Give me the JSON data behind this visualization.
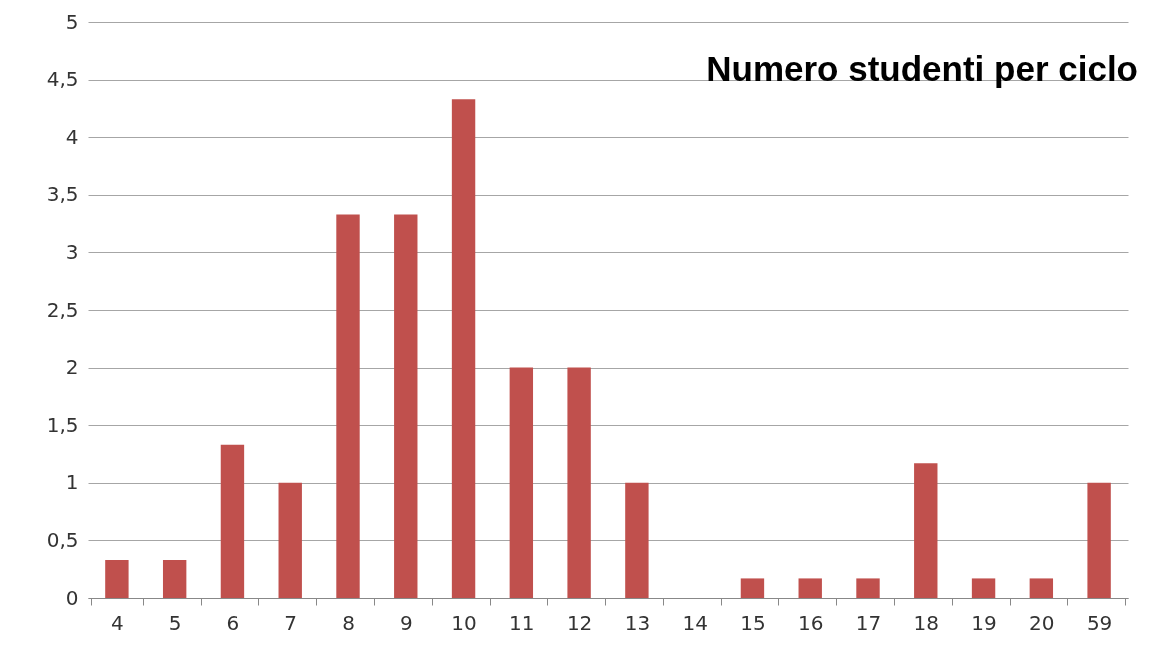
{
  "chart_data": {
    "type": "bar",
    "title": "Numero studenti per ciclo",
    "categories": [
      "4",
      "5",
      "6",
      "7",
      "8",
      "9",
      "10",
      "11",
      "12",
      "13",
      "14",
      "15",
      "16",
      "17",
      "18",
      "19",
      "20",
      "59"
    ],
    "values": [
      0.33,
      0.33,
      1.33,
      1,
      3.33,
      3.33,
      4.33,
      2,
      2,
      1,
      0,
      0.17,
      0.17,
      0.17,
      1.17,
      0.17,
      0.17,
      1
    ],
    "color": "#c0504d",
    "ylim": [
      0,
      5
    ],
    "yticks": [
      0,
      {
        "value": 0.5,
        "label": "0,5"
      },
      1,
      {
        "value": 1.5,
        "label": "1,5"
      },
      2,
      {
        "value": 2.5,
        "label": "2,5"
      },
      3,
      {
        "value": 3.5,
        "label": "3,5"
      },
      4,
      {
        "value": 4.5,
        "label": "4,5"
      },
      5
    ],
    "grid": "y"
  }
}
